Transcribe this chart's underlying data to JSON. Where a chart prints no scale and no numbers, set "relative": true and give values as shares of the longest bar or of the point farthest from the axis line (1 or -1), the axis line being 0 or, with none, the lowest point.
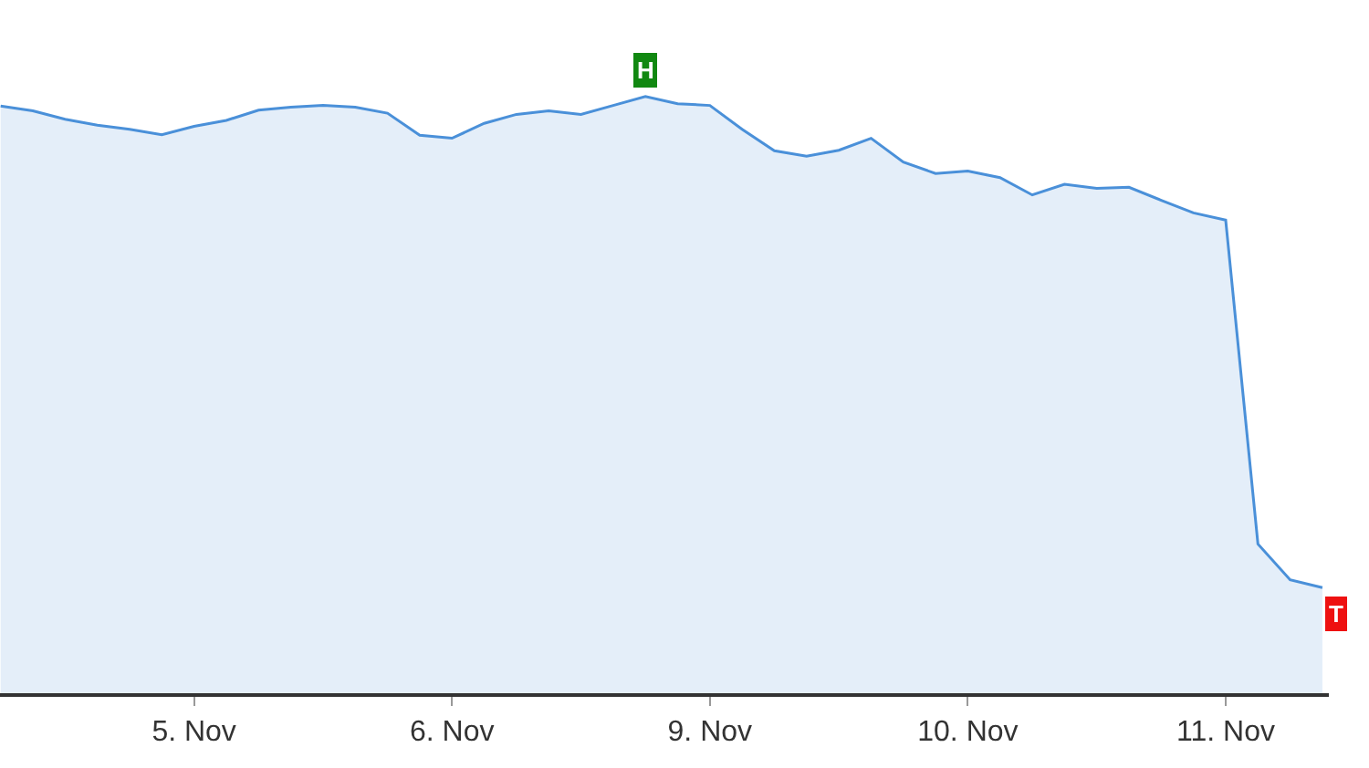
{
  "chart_data": {
    "type": "area",
    "relative": true,
    "color": "#4a90d9",
    "categories": [
      null,
      null,
      null,
      null,
      null,
      null,
      "5. Nov",
      null,
      null,
      null,
      null,
      null,
      null,
      null,
      "6. Nov",
      null,
      null,
      null,
      null,
      null,
      null,
      null,
      "9. Nov",
      null,
      null,
      null,
      null,
      null,
      null,
      null,
      "10. Nov",
      null,
      null,
      null,
      null,
      null,
      null,
      null,
      "11. Nov",
      null,
      null,
      null
    ],
    "values": [
      0.984,
      0.976,
      0.962,
      0.952,
      0.945,
      0.936,
      0.95,
      0.96,
      0.977,
      0.982,
      0.985,
      0.982,
      0.972,
      0.935,
      0.93,
      0.955,
      0.97,
      0.976,
      0.97,
      0.985,
      1.0,
      0.988,
      0.985,
      0.945,
      0.909,
      0.9,
      0.91,
      0.93,
      0.89,
      0.871,
      0.875,
      0.864,
      0.835,
      0.853,
      0.846,
      0.848,
      0.826,
      0.805,
      0.793,
      0.25,
      0.19,
      0.177
    ],
    "annotations": [
      "H",
      "T"
    ]
  }
}
